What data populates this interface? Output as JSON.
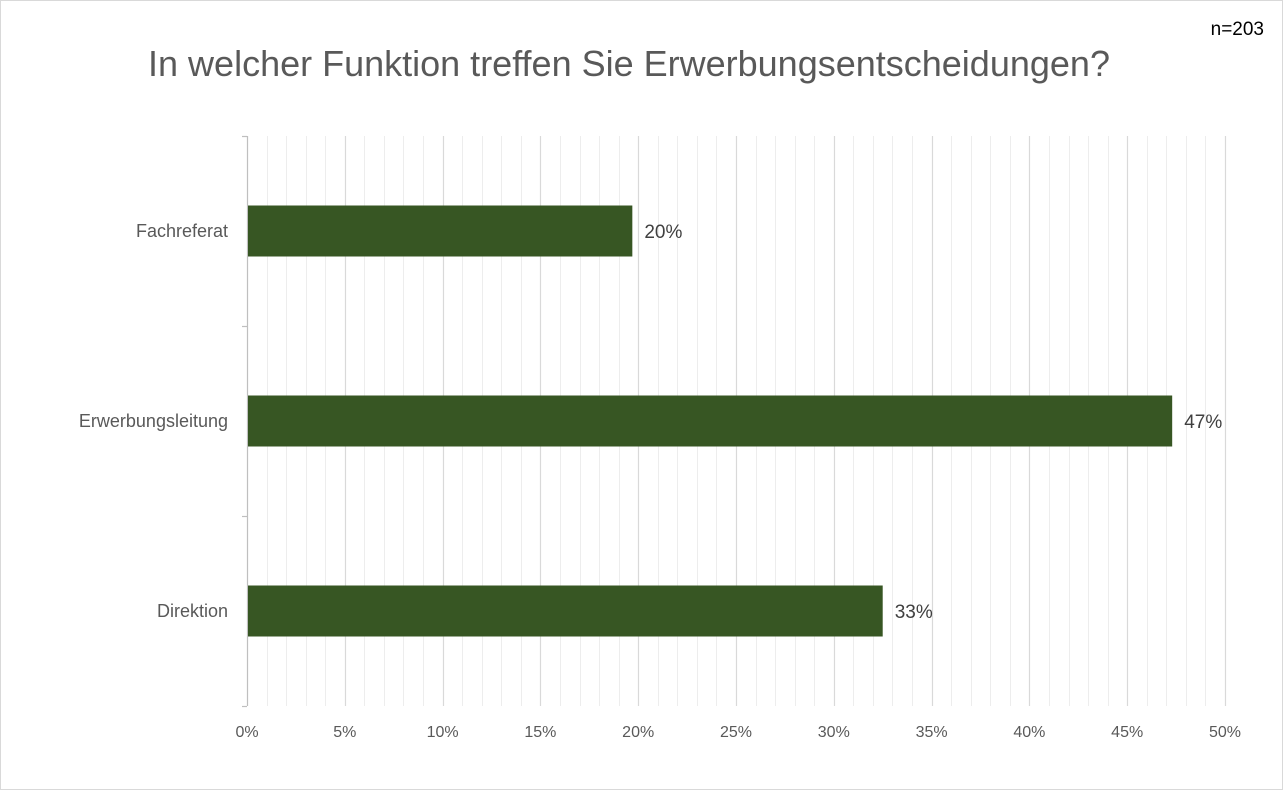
{
  "sample_size": "n=203",
  "chart_data": {
    "type": "bar",
    "orientation": "horizontal",
    "title": "In welcher Funktion treffen Sie Erwerbungsentscheidungen?",
    "categories": [
      "Fachreferat",
      "Erwerbungsleitung",
      "Direktion"
    ],
    "values": [
      19.7,
      47.3,
      32.5
    ],
    "value_labels": [
      "20%",
      "47%",
      "33%"
    ],
    "xlim": [
      0,
      50
    ],
    "x_ticks": [
      0,
      5,
      10,
      15,
      20,
      25,
      30,
      35,
      40,
      45,
      50
    ],
    "x_tick_labels": [
      "0%",
      "5%",
      "10%",
      "15%",
      "20%",
      "25%",
      "30%",
      "35%",
      "40%",
      "45%",
      "50%"
    ],
    "minor_grid_step": 1,
    "grid": true,
    "legend": "none",
    "bar_color": "#375623",
    "major_grid_color": "#d9d9d9",
    "minor_grid_color": "#ededed"
  }
}
